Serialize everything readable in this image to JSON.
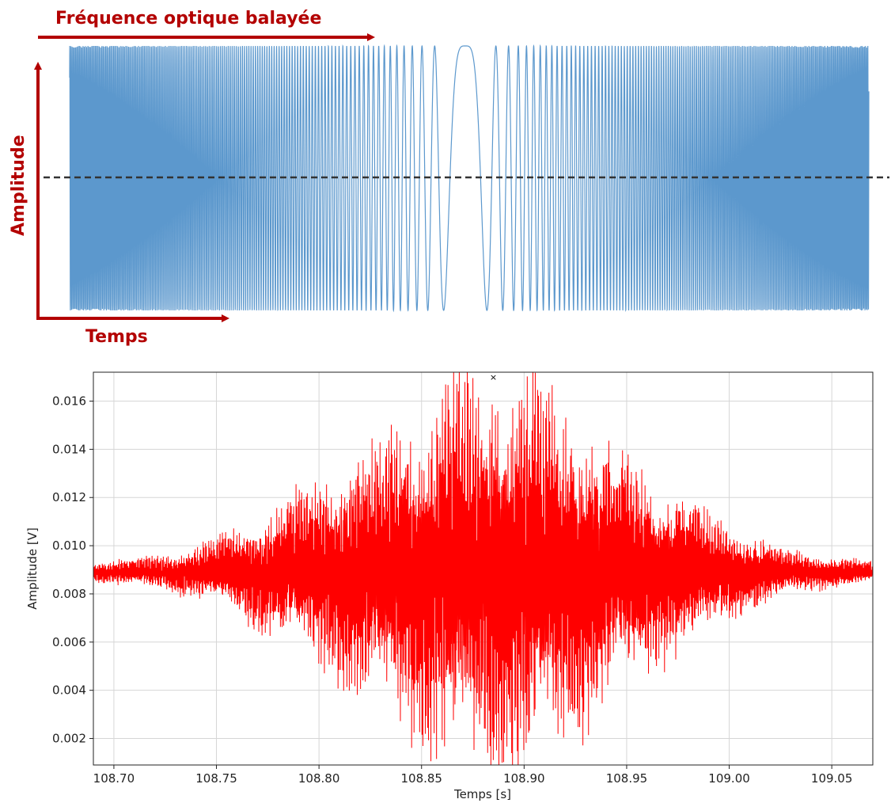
{
  "chart_data": [
    {
      "type": "line",
      "title": "",
      "annotations": {
        "top_arrow": "Fréquence optique balayée",
        "y_arrow": "Amplitude",
        "x_arrow": "Temps"
      },
      "series": [
        {
          "name": "",
          "values_description_color": "#4a90c8",
          "shape": "chirped-sine"
        }
      ],
      "grid": false,
      "colors": {
        "signal": "#3a7fbf",
        "annotation": "#b30000",
        "baseline": "#333333"
      }
    },
    {
      "type": "line",
      "title": "",
      "xlabel": "Temps [s]",
      "ylabel": "Amplitude [V]",
      "xlim": [
        108.69,
        109.07
      ],
      "ylim": [
        0.0009,
        0.0172
      ],
      "xticks": [
        "108.70",
        "108.75",
        "108.80",
        "108.85",
        "108.90",
        "108.95",
        "109.00",
        "109.05"
      ],
      "yticks": [
        "0.002",
        "0.004",
        "0.006",
        "0.008",
        "0.010",
        "0.012",
        "0.014",
        "0.016"
      ],
      "xtick_values": [
        108.7,
        108.75,
        108.8,
        108.85,
        108.9,
        108.95,
        109.0,
        109.05
      ],
      "ytick_values": [
        0.002,
        0.004,
        0.006,
        0.008,
        0.01,
        0.012,
        0.014,
        0.016
      ],
      "grid": true,
      "series": [
        {
          "name": "",
          "color": "#ff0000",
          "center_y": 0.0089,
          "envelope": {
            "x": [
              108.69,
              108.72,
              108.75,
              108.78,
              108.8,
              108.83,
              108.86,
              108.885,
              108.91,
              108.94,
              108.97,
              109.0,
              109.03,
              109.07
            ],
            "amp": [
              0.0004,
              0.0006,
              0.0012,
              0.0025,
              0.0035,
              0.005,
              0.0068,
              0.008,
              0.0068,
              0.005,
              0.0032,
              0.0018,
              0.0008,
              0.0004
            ]
          }
        }
      ],
      "peak_marker": {
        "x": 108.885,
        "y": 0.017,
        "symbol": "x"
      }
    }
  ]
}
